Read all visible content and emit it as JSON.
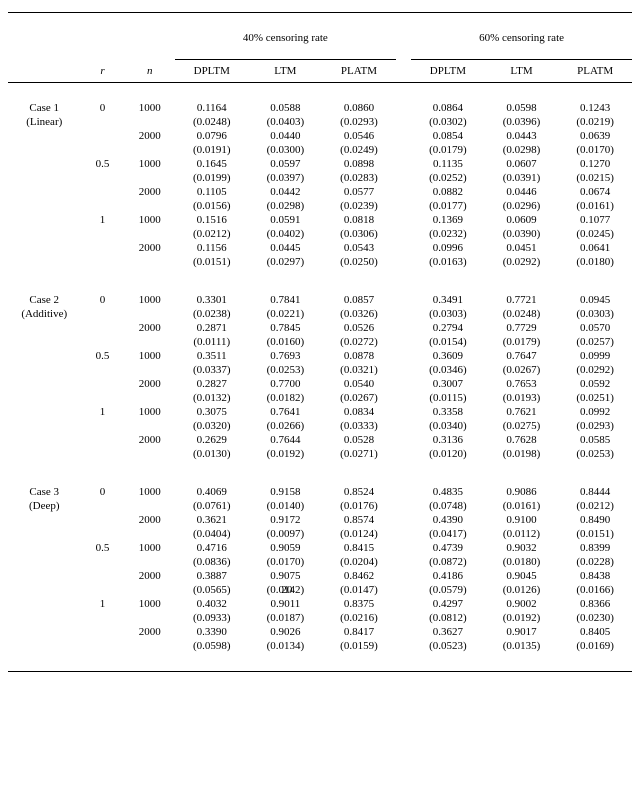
{
  "headers": {
    "group40": "40% censoring rate",
    "group60": "60% censoring rate",
    "r": "r",
    "n": "n",
    "methods": [
      "DPLTM",
      "LTM",
      "PLATM"
    ]
  },
  "page_number_overlay": "20",
  "blocks": [
    {
      "case_label": "Case 1",
      "case_sub": "(Linear)",
      "groups": [
        {
          "r": "0",
          "rows": [
            {
              "n": "1000",
              "v40": [
                "0.1164",
                "0.0588",
                "0.0860"
              ],
              "s40": [
                "(0.0248)",
                "(0.0403)",
                "(0.0293)"
              ],
              "v60": [
                "0.0864",
                "0.0598",
                "0.1243"
              ],
              "s60": [
                "(0.0302)",
                "(0.0396)",
                "(0.0219)"
              ]
            },
            {
              "n": "2000",
              "v40": [
                "0.0796",
                "0.0440",
                "0.0546"
              ],
              "s40": [
                "(0.0191)",
                "(0.0300)",
                "(0.0249)"
              ],
              "v60": [
                "0.0854",
                "0.0443",
                "0.0639"
              ],
              "s60": [
                "(0.0179)",
                "(0.0298)",
                "(0.0170)"
              ]
            }
          ]
        },
        {
          "r": "0.5",
          "rows": [
            {
              "n": "1000",
              "v40": [
                "0.1645",
                "0.0597",
                "0.0898"
              ],
              "s40": [
                "(0.0199)",
                "(0.0397)",
                "(0.0283)"
              ],
              "v60": [
                "0.1135",
                "0.0607",
                "0.1270"
              ],
              "s60": [
                "(0.0252)",
                "(0.0391)",
                "(0.0215)"
              ]
            },
            {
              "n": "2000",
              "v40": [
                "0.1105",
                "0.0442",
                "0.0577"
              ],
              "s40": [
                "(0.0156)",
                "(0.0298)",
                "(0.0239)"
              ],
              "v60": [
                "0.0882",
                "0.0446",
                "0.0674"
              ],
              "s60": [
                "(0.0177)",
                "(0.0296)",
                "(0.0161)"
              ]
            }
          ]
        },
        {
          "r": "1",
          "rows": [
            {
              "n": "1000",
              "v40": [
                "0.1516",
                "0.0591",
                "0.0818"
              ],
              "s40": [
                "(0.0212)",
                "(0.0402)",
                "(0.0306)"
              ],
              "v60": [
                "0.1369",
                "0.0609",
                "0.1077"
              ],
              "s60": [
                "(0.0232)",
                "(0.0390)",
                "(0.0245)"
              ]
            },
            {
              "n": "2000",
              "v40": [
                "0.1156",
                "0.0445",
                "0.0543"
              ],
              "s40": [
                "(0.0151)",
                "(0.0297)",
                "(0.0250)"
              ],
              "v60": [
                "0.0996",
                "0.0451",
                "0.0641"
              ],
              "s60": [
                "(0.0163)",
                "(0.0292)",
                "(0.0180)"
              ]
            }
          ]
        }
      ]
    },
    {
      "case_label": "Case 2",
      "case_sub": "(Additive)",
      "groups": [
        {
          "r": "0",
          "rows": [
            {
              "n": "1000",
              "v40": [
                "0.3301",
                "0.7841",
                "0.0857"
              ],
              "s40": [
                "(0.0238)",
                "(0.0221)",
                "(0.0326)"
              ],
              "v60": [
                "0.3491",
                "0.7721",
                "0.0945"
              ],
              "s60": [
                "(0.0303)",
                "(0.0248)",
                "(0.0303)"
              ]
            },
            {
              "n": "2000",
              "v40": [
                "0.2871",
                "0.7845",
                "0.0526"
              ],
              "s40": [
                "(0.0111)",
                "(0.0160)",
                "(0.0272)"
              ],
              "v60": [
                "0.2794",
                "0.7729",
                "0.0570"
              ],
              "s60": [
                "(0.0154)",
                "(0.0179)",
                "(0.0257)"
              ]
            }
          ]
        },
        {
          "r": "0.5",
          "rows": [
            {
              "n": "1000",
              "v40": [
                "0.3511",
                "0.7693",
                "0.0878"
              ],
              "s40": [
                "(0.0337)",
                "(0.0253)",
                "(0.0321)"
              ],
              "v60": [
                "0.3609",
                "0.7647",
                "0.0999"
              ],
              "s60": [
                "(0.0346)",
                "(0.0267)",
                "(0.0292)"
              ]
            },
            {
              "n": "2000",
              "v40": [
                "0.2827",
                "0.7700",
                "0.0540"
              ],
              "s40": [
                "(0.0132)",
                "(0.0182)",
                "(0.0267)"
              ],
              "v60": [
                "0.3007",
                "0.7653",
                "0.0592"
              ],
              "s60": [
                "(0.0115)",
                "(0.0193)",
                "(0.0251)"
              ]
            }
          ]
        },
        {
          "r": "1",
          "rows": [
            {
              "n": "1000",
              "v40": [
                "0.3075",
                "0.7641",
                "0.0834"
              ],
              "s40": [
                "(0.0320)",
                "(0.0266)",
                "(0.0333)"
              ],
              "v60": [
                "0.3358",
                "0.7621",
                "0.0992"
              ],
              "s60": [
                "(0.0340)",
                "(0.0275)",
                "(0.0293)"
              ]
            },
            {
              "n": "2000",
              "v40": [
                "0.2629",
                "0.7644",
                "0.0528"
              ],
              "s40": [
                "(0.0130)",
                "(0.0192)",
                "(0.0271)"
              ],
              "v60": [
                "0.3136",
                "0.7628",
                "0.0585"
              ],
              "s60": [
                "(0.0120)",
                "(0.0198)",
                "(0.0253)"
              ]
            }
          ]
        }
      ]
    },
    {
      "case_label": "Case 3",
      "case_sub": "(Deep)",
      "groups": [
        {
          "r": "0",
          "rows": [
            {
              "n": "1000",
              "v40": [
                "0.4069",
                "0.9158",
                "0.8524"
              ],
              "s40": [
                "(0.0761)",
                "(0.0140)",
                "(0.0176)"
              ],
              "v60": [
                "0.4835",
                "0.9086",
                "0.8444"
              ],
              "s60": [
                "(0.0748)",
                "(0.0161)",
                "(0.0212)"
              ]
            },
            {
              "n": "2000",
              "v40": [
                "0.3621",
                "0.9172",
                "0.8574"
              ],
              "s40": [
                "(0.0404)",
                "(0.0097)",
                "(0.0124)"
              ],
              "v60": [
                "0.4390",
                "0.9100",
                "0.8490"
              ],
              "s60": [
                "(0.0417)",
                "(0.0112)",
                "(0.0151)"
              ]
            }
          ]
        },
        {
          "r": "0.5",
          "rows": [
            {
              "n": "1000",
              "v40": [
                "0.4716",
                "0.9059",
                "0.8415"
              ],
              "s40": [
                "(0.0836)",
                "(0.0170)",
                "(0.0204)"
              ],
              "v60": [
                "0.4739",
                "0.9032",
                "0.8399"
              ],
              "s60": [
                "(0.0872)",
                "(0.0180)",
                "(0.0228)"
              ]
            },
            {
              "n": "2000",
              "v40": [
                "0.3887",
                "0.9075",
                "0.8462"
              ],
              "s40_special": true,
              "s40": [
                "(0.0565)",
                "(0.0142)",
                "(0.0147)"
              ],
              "v60": [
                "0.4186",
                "0.9045",
                "0.8438"
              ],
              "s60": [
                "(0.0579)",
                "(0.0126)",
                "(0.0166)"
              ]
            }
          ]
        },
        {
          "r": "1",
          "rows": [
            {
              "n": "1000",
              "v40": [
                "0.4032",
                "0.9011",
                "0.8375"
              ],
              "s40": [
                "(0.0933)",
                "(0.0187)",
                "(0.0216)"
              ],
              "v60": [
                "0.4297",
                "0.9002",
                "0.8366"
              ],
              "s60": [
                "(0.0812)",
                "(0.0192)",
                "(0.0230)"
              ]
            },
            {
              "n": "2000",
              "v40": [
                "0.3390",
                "0.9026",
                "0.8417"
              ],
              "s40": [
                "(0.0598)",
                "(0.0134)",
                "(0.0159)"
              ],
              "v60": [
                "0.3627",
                "0.9017",
                "0.8405"
              ],
              "s60": [
                "(0.0523)",
                "(0.0135)",
                "(0.0169)"
              ]
            }
          ]
        }
      ]
    }
  ]
}
